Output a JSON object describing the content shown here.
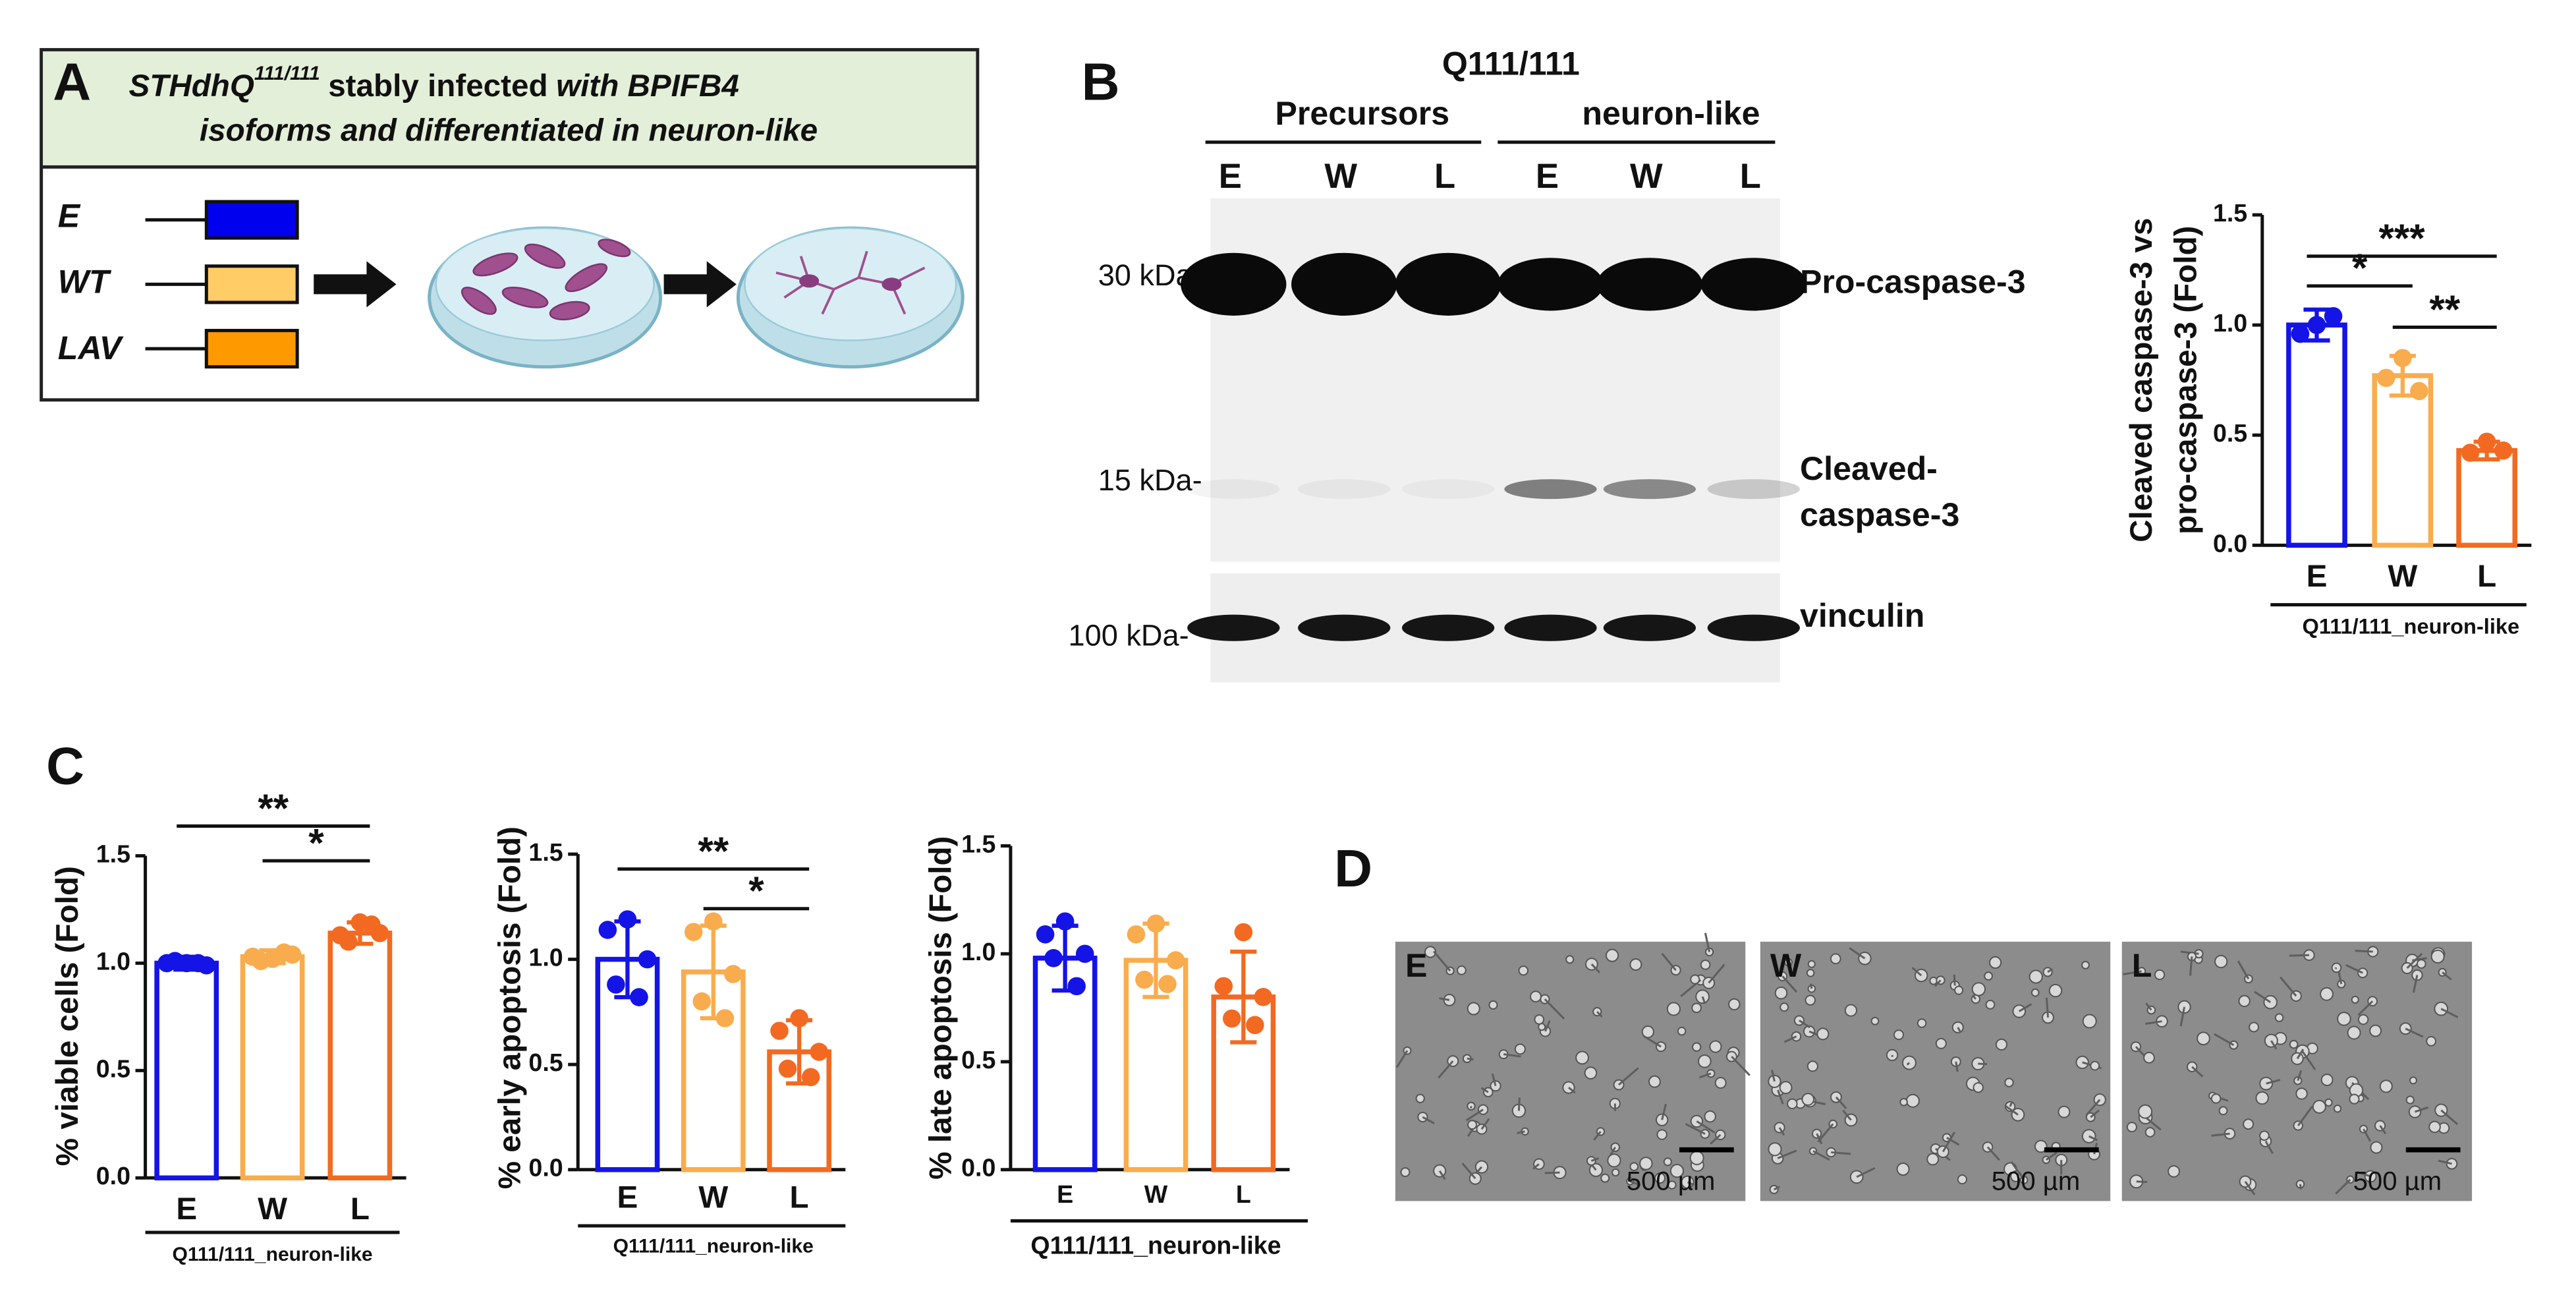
{
  "panels": {
    "A": {
      "letter": "A",
      "title": [
        "STHdhQ",
        "111/111",
        "stably infected",
        "with BPIFB4",
        "isoforms and differentiated in neuron-like"
      ],
      "constructs": [
        "E",
        "WT",
        "LAV"
      ]
    },
    "B": {
      "letter": "B",
      "condition": "Q111/111",
      "groups": [
        "Precursors",
        "neuron-like"
      ],
      "lanes": [
        "E",
        "W",
        "L",
        "E",
        "W",
        "L"
      ],
      "markers": [
        "30 kDa-",
        "15 kDa-",
        "100 kDa-"
      ],
      "bands": [
        "Pro-caspase-3",
        "Cleaved-",
        "caspase-3",
        "vinculin"
      ]
    },
    "C": {
      "letter": "C"
    },
    "D": {
      "letter": "D",
      "images": [
        "E",
        "W",
        "L"
      ],
      "scale_bars": [
        "500 µm",
        "500 µm",
        "500 µm"
      ]
    }
  },
  "chart_data": [
    {
      "type": "bar",
      "ylabel": [
        "Cleaved caspase-3 vs",
        "pro-caspase-3  (Fold)"
      ],
      "xlabel": "Q111/111_neuron-like",
      "categories": [
        "E",
        "W",
        "L"
      ],
      "values": [
        1.0,
        0.77,
        0.43
      ],
      "errors": [
        0.07,
        0.09,
        0.04
      ],
      "points": [
        [
          1.0,
          0.96,
          1.04
        ],
        [
          0.85,
          0.76,
          0.7
        ],
        [
          0.47,
          0.42,
          0.43
        ]
      ],
      "colors": [
        "#1414e6",
        "#f9ac4d",
        "#f26a22"
      ],
      "ylim": [
        0,
        1.5
      ],
      "yticks": [
        {
          "value": 0,
          "label": "0.0"
        },
        0.5,
        {
          "value": 1,
          "label": "1.0"
        },
        1.5
      ],
      "significance": [
        {
          "label": "***",
          "between": [
            "E",
            "L"
          ]
        },
        {
          "label": "*",
          "between": [
            "E",
            "W"
          ]
        },
        {
          "label": "**",
          "between": [
            "W",
            "L"
          ]
        }
      ]
    },
    {
      "type": "bar",
      "ylabel": "% viable cells (Fold)",
      "xlabel": "Q111/111_neuron-like",
      "categories": [
        "E",
        "W",
        "L"
      ],
      "values": [
        1.0,
        1.03,
        1.14
      ],
      "errors": [
        0.03,
        0.03,
        0.05
      ],
      "points": [
        [
          1.0,
          1.0,
          0.99,
          1.01,
          1.0
        ],
        [
          1.02,
          1.03,
          1.04,
          1.01,
          1.05
        ],
        [
          1.19,
          1.13,
          1.14,
          1.1,
          1.18
        ]
      ],
      "colors": [
        "#1414e6",
        "#f9ac4d",
        "#f26a22"
      ],
      "ylim": [
        0,
        1.5
      ],
      "yticks": [
        {
          "value": 0,
          "label": "0.0"
        },
        0.5,
        {
          "value": 1,
          "label": "1.0"
        },
        1.5
      ],
      "significance": [
        {
          "label": "**",
          "between": [
            "E",
            "L"
          ]
        },
        {
          "label": "*",
          "between": [
            "W",
            "L"
          ]
        }
      ]
    },
    {
      "type": "bar",
      "ylabel": "% early apoptosis (Fold)",
      "xlabel": "Q111/111_neuron-like",
      "categories": [
        "E",
        "W",
        "L"
      ],
      "values": [
        1.0,
        0.94,
        0.56
      ],
      "errors": [
        0.18,
        0.22,
        0.15
      ],
      "points": [
        [
          1.19,
          1.14,
          1.0,
          0.88,
          0.82
        ],
        [
          1.18,
          1.13,
          0.93,
          0.8,
          0.72
        ],
        [
          0.72,
          0.66,
          0.56,
          0.48,
          0.44
        ]
      ],
      "colors": [
        "#1414e6",
        "#f9ac4d",
        "#f26a22"
      ],
      "ylim": [
        0,
        1.5
      ],
      "yticks": [
        {
          "value": 0,
          "label": "0.0"
        },
        0.5,
        {
          "value": 1,
          "label": "1.0"
        },
        1.5
      ],
      "significance": [
        {
          "label": "**",
          "between": [
            "E",
            "L"
          ]
        },
        {
          "label": "*",
          "between": [
            "W",
            "L"
          ]
        }
      ]
    },
    {
      "type": "bar",
      "ylabel": "% late apoptosis (Fold)",
      "xlabel": "Q111/111_neuron-like",
      "categories": [
        "E",
        "W",
        "L"
      ],
      "values": [
        0.98,
        0.97,
        0.8
      ],
      "errors": [
        0.15,
        0.17,
        0.21
      ],
      "points": [
        [
          1.15,
          1.09,
          1.0,
          0.98,
          0.85
        ],
        [
          1.14,
          1.09,
          0.97,
          0.88,
          0.86
        ],
        [
          1.1,
          0.85,
          0.8,
          0.7,
          0.67
        ]
      ],
      "colors": [
        "#1414e6",
        "#f9ac4d",
        "#f26a22"
      ],
      "ylim": [
        0,
        1.5
      ],
      "yticks": [
        {
          "value": 0,
          "label": "0.0"
        },
        0.5,
        {
          "value": 1,
          "label": "1.0"
        },
        1.5
      ],
      "significance": []
    }
  ]
}
